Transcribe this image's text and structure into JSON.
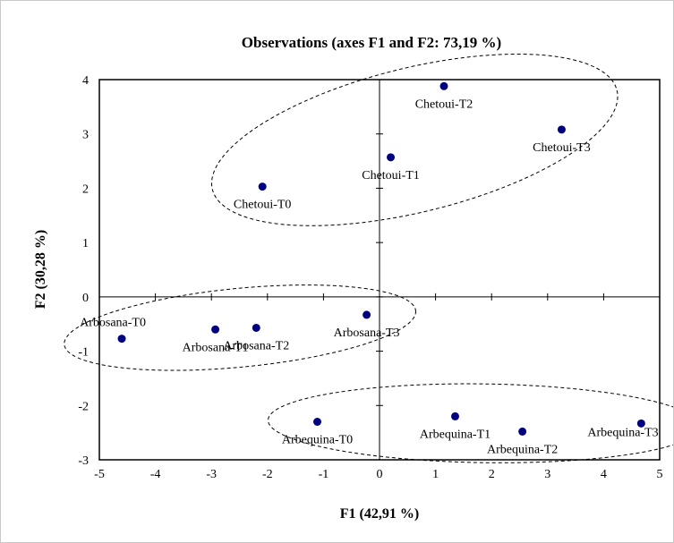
{
  "chart_data": {
    "type": "scatter",
    "title": "Observations (axes F1 and F2: 73,19 %)",
    "xlabel": "F1 (42,91 %)",
    "ylabel": "F2 (30,28 %)",
    "xlim": [
      -5,
      5
    ],
    "ylim": [
      -3,
      4
    ],
    "xticks": [
      "-5",
      "-4",
      "-3",
      "-2",
      "-1",
      "0",
      "1",
      "2",
      "3",
      "4",
      "5"
    ],
    "yticks": [
      "-3",
      "-2",
      "-1",
      "0",
      "1",
      "2",
      "3",
      "4"
    ],
    "grid": false,
    "marker_color": "#000080",
    "points": [
      {
        "label": "Chetoui-T0",
        "x": -2.09,
        "y": 2.03
      },
      {
        "label": "Chetoui-T1",
        "x": 0.2,
        "y": 2.57
      },
      {
        "label": "Chetoui-T2",
        "x": 1.15,
        "y": 3.88
      },
      {
        "label": "Chetoui-T3",
        "x": 3.25,
        "y": 3.08
      },
      {
        "label": "Arbosana-T0",
        "x": -4.6,
        "y": -0.77
      },
      {
        "label": "Arbosana-T1",
        "x": -2.93,
        "y": -0.6
      },
      {
        "label": "Arbosana-T2",
        "x": -2.2,
        "y": -0.57
      },
      {
        "label": "Arbosana-T3",
        "x": -0.23,
        "y": -0.33
      },
      {
        "label": "Arbequina-T0",
        "x": -1.11,
        "y": -2.3
      },
      {
        "label": "Arbequina-T1",
        "x": 1.35,
        "y": -2.2
      },
      {
        "label": "Arbequina-T2",
        "x": 2.55,
        "y": -2.48
      },
      {
        "label": "Arbequina-T3",
        "x": 4.67,
        "y": -2.33
      }
    ],
    "groups": [
      {
        "members": [
          "Chetoui-T0",
          "Chetoui-T1",
          "Chetoui-T2",
          "Chetoui-T3"
        ]
      },
      {
        "members": [
          "Arbosana-T0",
          "Arbosana-T1",
          "Arbosana-T2",
          "Arbosana-T3"
        ]
      },
      {
        "members": [
          "Arbequina-T0",
          "Arbequina-T1",
          "Arbequina-T2",
          "Arbequina-T3"
        ]
      }
    ]
  }
}
